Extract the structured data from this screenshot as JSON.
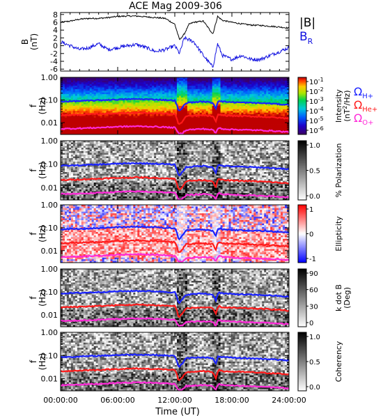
{
  "title": "ACE Mag 2009-306",
  "xlabel": "Time (UT)",
  "xticks": [
    "00:00:00",
    "06:00:00",
    "12:00:00",
    "18:00:00",
    "24:00:00"
  ],
  "freq_ticks": [
    "1.00",
    "0.10",
    "0.01"
  ],
  "colors": {
    "B_total": "#000000",
    "B_R": "#1010e0",
    "omega_H": "#1a22ff",
    "omega_He": "#ff1a1a",
    "omega_O": "#ff2ad8"
  },
  "panels": [
    {
      "id": "mag",
      "ylabel": "B",
      "yunit": "(nT)",
      "yticks": [
        "8",
        "6",
        "4",
        "2",
        "0",
        "-2",
        "-4",
        "-6"
      ],
      "legend": [
        {
          "text": "|B|",
          "color": "#000000"
        },
        {
          "text": "B",
          "sub": "R",
          "color": "#1010e0"
        }
      ]
    },
    {
      "id": "intensity",
      "ylabel": "f",
      "yunit": "(Hz)",
      "colormap": "rainbow",
      "cb_ticks": [
        "10",
        "10",
        "10",
        "10",
        "10",
        "10"
      ],
      "cb_exps": [
        "-1",
        "-2",
        "-3",
        "-4",
        "-5",
        "-6"
      ],
      "cb_label1": "Intensity",
      "cb_label2": "(nT /Hz)",
      "cb_label2_sup": "2",
      "legend": [
        {
          "text": "Ω",
          "sub": "H+",
          "color": "#1a22ff"
        },
        {
          "text": "Ω",
          "sub": "He+",
          "color": "#ff1a1a"
        },
        {
          "text": "Ω",
          "sub": "O+",
          "color": "#ff2ad8"
        }
      ]
    },
    {
      "id": "polarization",
      "ylabel": "f",
      "yunit": "(Hz)",
      "colormap": "gray_inv",
      "cb_ticks": [
        "1.0",
        "0.5",
        "0.0"
      ],
      "cb_label1": "% Polarization"
    },
    {
      "id": "ellipticity",
      "ylabel": "f",
      "yunit": "(Hz)",
      "colormap": "bwr",
      "cb_ticks": [
        "1",
        "0",
        "-1"
      ],
      "cb_label1": "Ellipticity"
    },
    {
      "id": "kdotb",
      "ylabel": "f",
      "yunit": "(Hz)",
      "colormap": "gray_inv",
      "cb_ticks": [
        "90",
        "60",
        "30",
        "0"
      ],
      "cb_label1": "k dot B",
      "cb_label2": "(Deg)"
    },
    {
      "id": "coherency",
      "ylabel": "f",
      "yunit": "(Hz)",
      "colormap": "gray_inv",
      "cb_ticks": [
        "1.0",
        "0.5",
        "0.0"
      ],
      "cb_label1": "Coherency"
    }
  ],
  "chart_data": {
    "type": "line",
    "x_unit": "hours UT",
    "x_range": [
      0,
      24
    ],
    "mag_ylim": [
      -6.5,
      8.5
    ],
    "freq_range_hz": [
      0.003,
      1.0
    ],
    "freq_scale": "log",
    "series": [
      {
        "name": "|B|",
        "x": [
          0,
          1,
          2,
          3,
          4,
          5,
          6,
          7,
          8,
          9,
          10,
          11,
          12,
          12.5,
          13,
          13.5,
          14,
          15,
          16,
          16.5,
          17,
          18,
          19,
          20,
          21,
          22,
          23,
          24
        ],
        "y": [
          6.0,
          6.3,
          6.8,
          7.0,
          7.0,
          7.2,
          7.5,
          7.6,
          7.6,
          7.4,
          7.2,
          7.0,
          5.5,
          1.5,
          3.0,
          5.5,
          6.0,
          6.3,
          3.0,
          7.5,
          6.5,
          6.0,
          5.6,
          5.3,
          5.2,
          5.0,
          4.8,
          4.5
        ]
      },
      {
        "name": "B_R",
        "x": [
          0,
          1,
          2,
          3,
          4,
          5,
          6,
          7,
          8,
          9,
          10,
          11,
          12,
          12.5,
          13,
          13.5,
          14,
          15,
          16,
          16.5,
          17,
          18,
          19,
          20,
          21,
          22,
          23,
          24
        ],
        "y": [
          1.0,
          0.0,
          -1.0,
          -0.5,
          0.5,
          -1.0,
          -0.5,
          0.0,
          0.3,
          -0.5,
          -1.5,
          -1.0,
          0.0,
          -2.0,
          2.0,
          1.5,
          1.0,
          -2.5,
          -5.5,
          0.5,
          -2.5,
          -3.5,
          -2.5,
          -3.5,
          -3.5,
          -2.5,
          -1.5,
          -0.5
        ]
      },
      {
        "name": "Ω_H+",
        "x": [
          0,
          2,
          4,
          6,
          8,
          10,
          12,
          12.4,
          12.8,
          13.2,
          14,
          15,
          16,
          16.3,
          16.6,
          17,
          18,
          20,
          22,
          24
        ],
        "y": [
          0.085,
          0.09,
          0.097,
          0.105,
          0.11,
          0.105,
          0.095,
          0.03,
          0.045,
          0.075,
          0.08,
          0.085,
          0.075,
          0.04,
          0.095,
          0.085,
          0.08,
          0.075,
          0.07,
          0.06
        ]
      },
      {
        "name": "Ω_He+",
        "x": [
          0,
          2,
          4,
          6,
          8,
          10,
          12,
          12.4,
          12.8,
          13.2,
          14,
          15,
          16,
          16.3,
          16.6,
          17,
          18,
          20,
          22,
          24
        ],
        "y": [
          0.021,
          0.0225,
          0.024,
          0.026,
          0.0275,
          0.026,
          0.024,
          0.0075,
          0.011,
          0.019,
          0.02,
          0.021,
          0.019,
          0.01,
          0.024,
          0.021,
          0.02,
          0.019,
          0.0175,
          0.015
        ]
      },
      {
        "name": "Ω_O+",
        "x": [
          0,
          2,
          4,
          6,
          8,
          10,
          12,
          12.4,
          12.8,
          13.2,
          14,
          15,
          16,
          16.3,
          16.6,
          17,
          18,
          20,
          22,
          24
        ],
        "y": [
          0.0053,
          0.0056,
          0.006,
          0.0066,
          0.0069,
          0.0066,
          0.006,
          0.0032,
          0.0034,
          0.0048,
          0.005,
          0.0053,
          0.0048,
          0.0033,
          0.006,
          0.0053,
          0.005,
          0.0047,
          0.0044,
          0.0038
        ]
      }
    ]
  }
}
